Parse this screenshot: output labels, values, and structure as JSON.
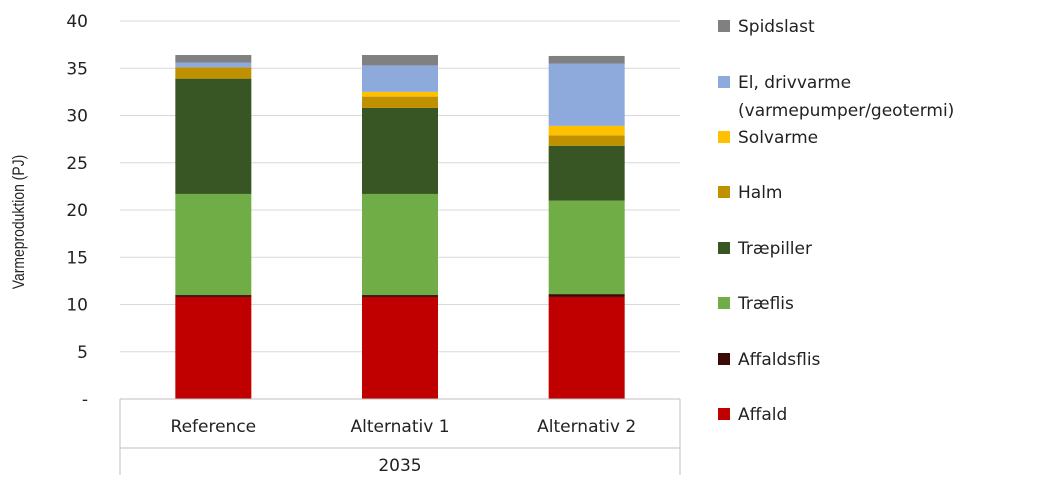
{
  "chart_data": {
    "type": "bar",
    "stacked": true,
    "categories": [
      "Reference",
      "Alternativ 1",
      "Alternativ 2"
    ],
    "group_label": "2035",
    "ylabel": "Varmeproduktion (PJ)",
    "ylim": [
      0,
      40
    ],
    "yticks": [
      0,
      5,
      10,
      15,
      20,
      25,
      30,
      35,
      40
    ],
    "ytick_labels": [
      "-",
      "5",
      "10",
      "15",
      "20",
      "25",
      "30",
      "35",
      "40"
    ],
    "grid": true,
    "legend_position": "right",
    "series": [
      {
        "name": "Affald",
        "color": "#C00000",
        "values": [
          10.8,
          10.8,
          10.8
        ]
      },
      {
        "name": "Affaldsflis",
        "color": "#3B0A05",
        "values": [
          0.2,
          0.2,
          0.3
        ]
      },
      {
        "name": "Træflis",
        "color": "#70AD47",
        "values": [
          10.7,
          10.7,
          9.9
        ]
      },
      {
        "name": "Træpiller",
        "color": "#375623",
        "values": [
          12.2,
          9.1,
          5.8
        ]
      },
      {
        "name": "Halm",
        "color": "#BF9000",
        "values": [
          1.2,
          1.2,
          1.1
        ]
      },
      {
        "name": "Solvarme",
        "color": "#FFC000",
        "values": [
          0.0,
          0.5,
          1.0
        ]
      },
      {
        "name": "El, drivvarme (varmepumper/geotermi)",
        "color": "#8EA9DB",
        "values": [
          0.5,
          2.8,
          6.6
        ]
      },
      {
        "name": "Spidslast",
        "color": "#808080",
        "values": [
          0.8,
          1.1,
          0.8
        ]
      }
    ],
    "legend_lines": [
      [
        "Spidslast"
      ],
      [
        "El, drivvarme",
        "(varmepumper/geotermi)"
      ],
      [
        "Solvarme"
      ],
      [
        "Halm"
      ],
      [
        "Træpiller"
      ],
      [
        "Træflis"
      ],
      [
        "Affaldsflis"
      ],
      [
        "Affald"
      ]
    ]
  }
}
